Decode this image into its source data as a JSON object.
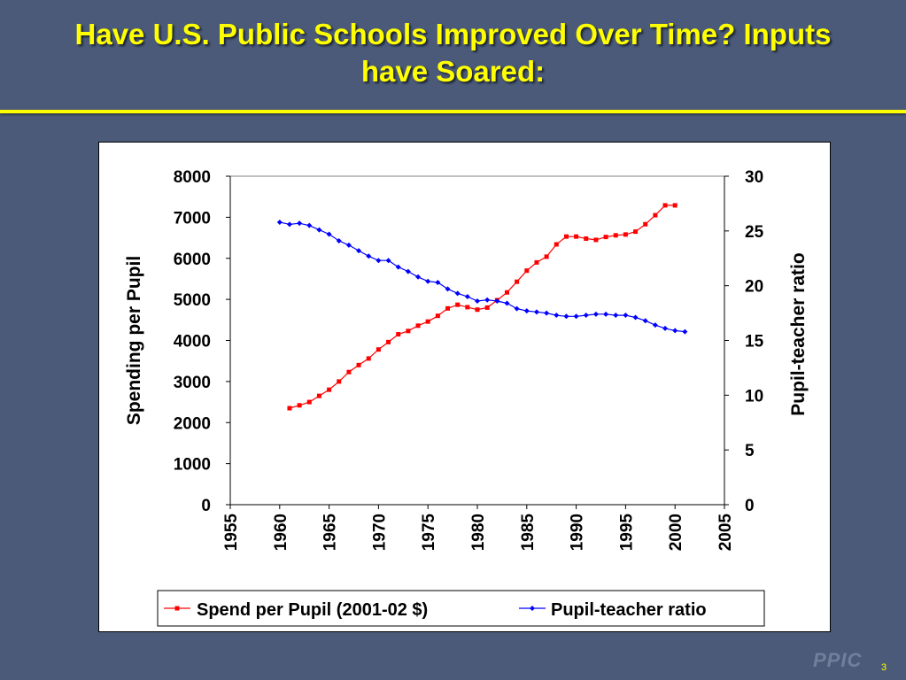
{
  "slide": {
    "title_line1": "Have U.S. Public Schools Improved Over Time? Inputs",
    "title_line2": "have Soared:",
    "footer_logo": "PPIC",
    "page_number": "3"
  },
  "colors": {
    "background": "#4a5a78",
    "title": "#ffff00",
    "spend_series": "#ff0000",
    "ratio_series": "#0000ff"
  },
  "chart_data": {
    "type": "line",
    "title": "",
    "xlabel": "",
    "ylabel": "Spending per Pupil",
    "y2label": "Pupil-teacher ratio",
    "xlim": [
      1955,
      2005
    ],
    "xticks": [
      "1955",
      "1960",
      "1965",
      "1970",
      "1975",
      "1980",
      "1985",
      "1990",
      "1995",
      "2000",
      "2005"
    ],
    "ylim": [
      0,
      8000
    ],
    "yticks": [
      "0",
      "1000",
      "2000",
      "3000",
      "4000",
      "5000",
      "6000",
      "7000",
      "8000"
    ],
    "y2lim": [
      0,
      30
    ],
    "y2ticks": [
      "0",
      "5",
      "10",
      "15",
      "20",
      "25",
      "30"
    ],
    "grid": false,
    "legend_position": "bottom",
    "series": [
      {
        "name": "Spend per Pupil (2001-02 $)",
        "axis": "left",
        "color": "#ff0000",
        "marker": "square",
        "x": [
          1961,
          1962,
          1963,
          1964,
          1965,
          1966,
          1967,
          1968,
          1969,
          1970,
          1971,
          1972,
          1973,
          1974,
          1975,
          1976,
          1977,
          1978,
          1979,
          1980,
          1981,
          1982,
          1983,
          1984,
          1985,
          1986,
          1987,
          1988,
          1989,
          1990,
          1991,
          1992,
          1993,
          1994,
          1995,
          1996,
          1997,
          1998,
          1999,
          2000
        ],
        "y": [
          2350,
          2420,
          2500,
          2650,
          2800,
          3000,
          3230,
          3400,
          3560,
          3780,
          3960,
          4150,
          4230,
          4360,
          4460,
          4600,
          4780,
          4870,
          4810,
          4750,
          4800,
          4980,
          5170,
          5430,
          5700,
          5900,
          6040,
          6340,
          6530,
          6530,
          6480,
          6450,
          6520,
          6560,
          6580,
          6650,
          6830,
          7050,
          7290,
          7290
        ]
      },
      {
        "name": "Pupil-teacher ratio",
        "axis": "right",
        "color": "#0000ff",
        "marker": "diamond",
        "x": [
          1960,
          1961,
          1962,
          1963,
          1964,
          1965,
          1966,
          1967,
          1968,
          1969,
          1970,
          1971,
          1972,
          1973,
          1974,
          1975,
          1976,
          1977,
          1978,
          1979,
          1980,
          1981,
          1982,
          1983,
          1984,
          1985,
          1986,
          1987,
          1988,
          1989,
          1990,
          1991,
          1992,
          1993,
          1994,
          1995,
          1996,
          1997,
          1998,
          1999,
          2000,
          2001
        ],
        "y": [
          25.8,
          25.6,
          25.7,
          25.5,
          25.1,
          24.7,
          24.1,
          23.7,
          23.2,
          22.7,
          22.3,
          22.3,
          21.7,
          21.3,
          20.8,
          20.4,
          20.3,
          19.7,
          19.3,
          19.0,
          18.6,
          18.7,
          18.6,
          18.4,
          17.9,
          17.7,
          17.6,
          17.5,
          17.3,
          17.2,
          17.2,
          17.3,
          17.4,
          17.4,
          17.3,
          17.3,
          17.1,
          16.8,
          16.4,
          16.1,
          15.9,
          15.8
        ]
      }
    ]
  }
}
